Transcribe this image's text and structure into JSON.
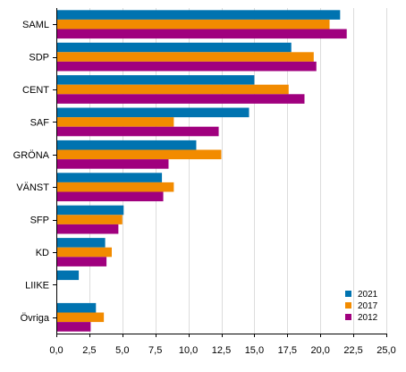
{
  "chart_data": {
    "type": "bar",
    "orientation": "horizontal",
    "categories": [
      "SAML",
      "SDP",
      "CENT",
      "SAF",
      "GRÖNA",
      "VÄNST",
      "SFP",
      "KD",
      "LIIKE",
      "Övriga"
    ],
    "series": [
      {
        "name": "2021",
        "color": "#0073b0",
        "values": [
          21.5,
          17.8,
          15.0,
          14.6,
          10.6,
          8.0,
          5.1,
          3.7,
          1.7,
          3.0
        ]
      },
      {
        "name": "2017",
        "color": "#f28b00",
        "values": [
          20.7,
          19.5,
          17.6,
          8.9,
          12.5,
          8.9,
          5.0,
          4.2,
          null,
          3.6
        ]
      },
      {
        "name": "2012",
        "color": "#a0007e",
        "values": [
          22.0,
          19.7,
          18.8,
          12.3,
          8.5,
          8.1,
          4.7,
          3.8,
          null,
          2.6
        ]
      }
    ],
    "xlim": [
      0,
      25
    ],
    "xticks": [
      0,
      2.5,
      5,
      7.5,
      10,
      12.5,
      15,
      17.5,
      20,
      22.5,
      25
    ],
    "xtick_labels": [
      "0,0",
      "2,5",
      "5,0",
      "7,5",
      "10,0",
      "12,5",
      "15,0",
      "17,5",
      "20,0",
      "22,5",
      "25,0"
    ],
    "grid": "vertical",
    "legend_position": "bottom-right",
    "title": "",
    "xlabel": "",
    "ylabel": ""
  }
}
